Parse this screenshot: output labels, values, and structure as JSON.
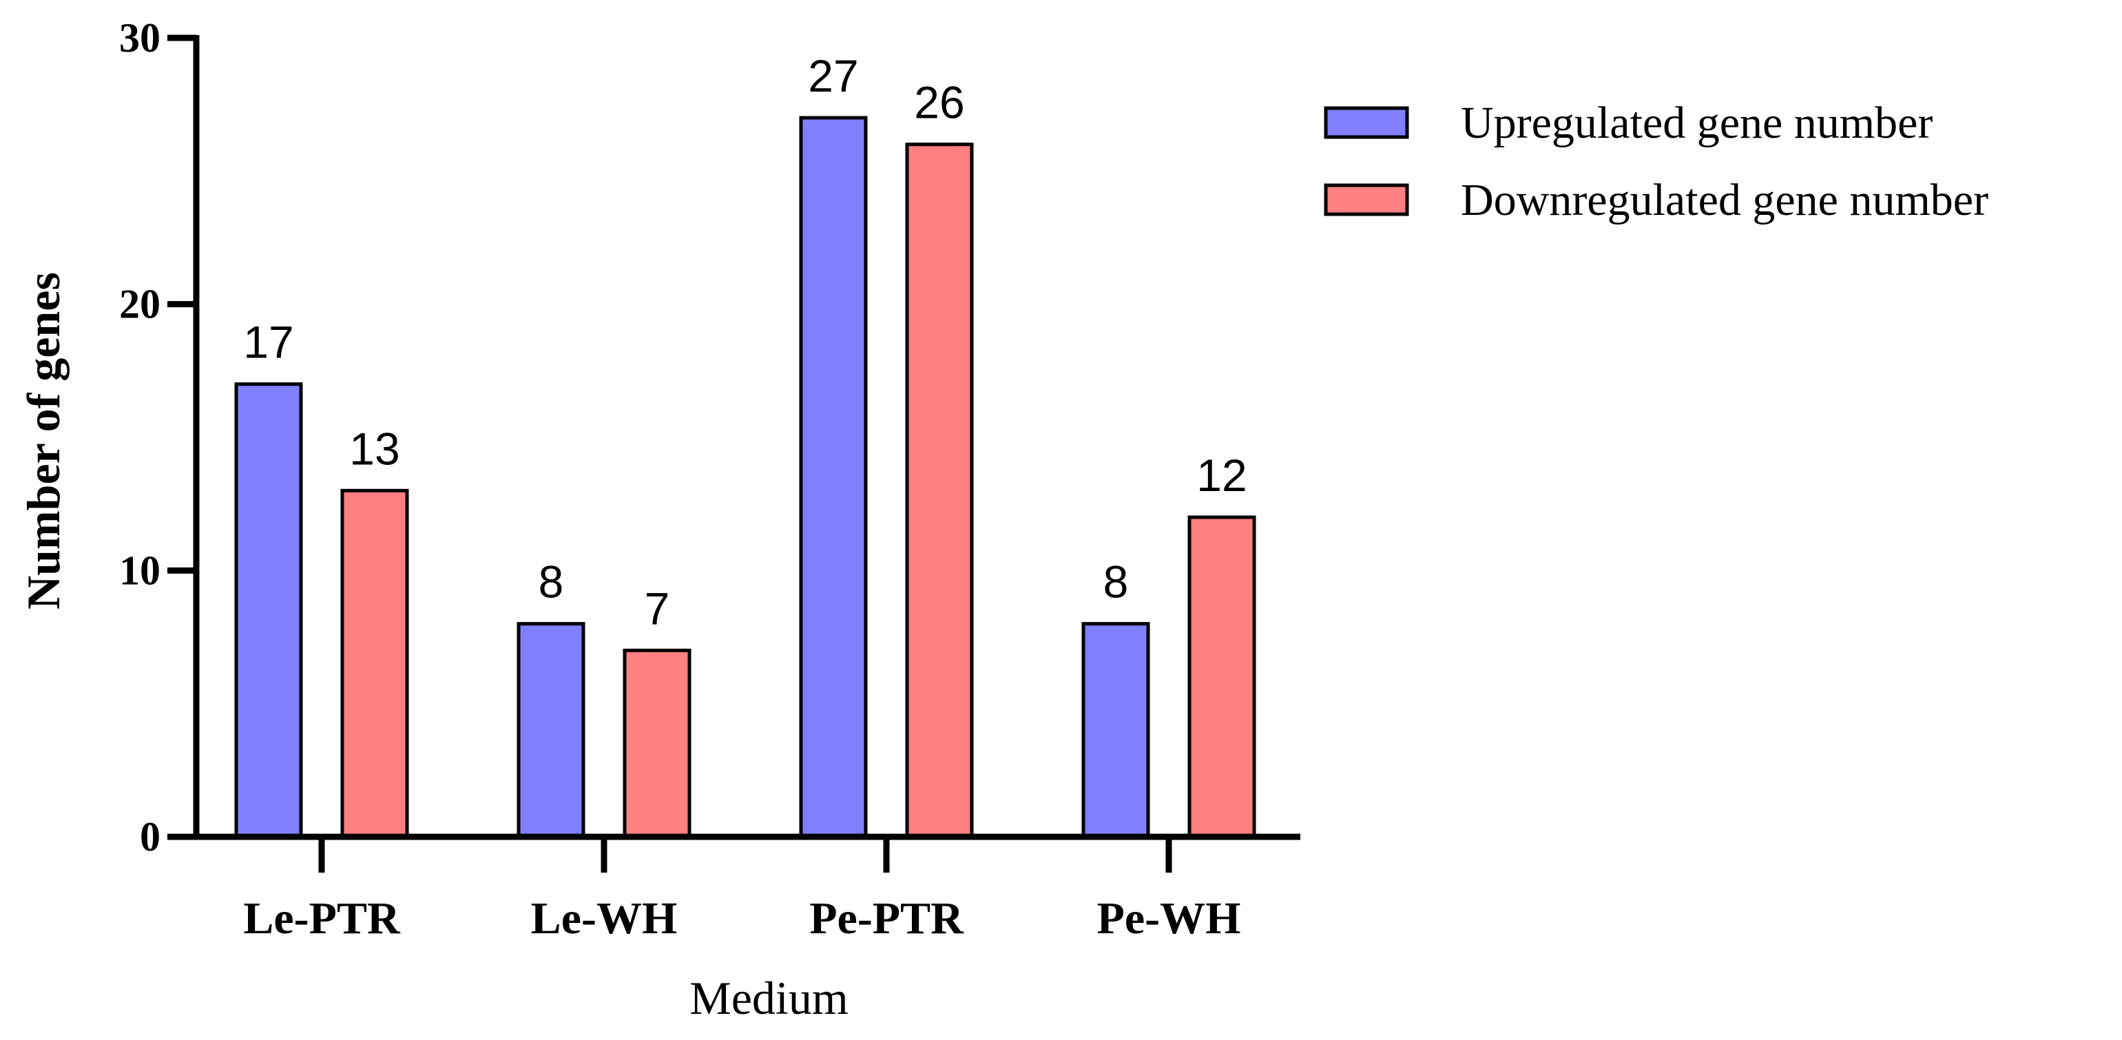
{
  "chart_data": {
    "type": "bar",
    "categories": [
      "Le-PTR",
      "Le-WH",
      "Pe-PTR",
      "Pe-WH"
    ],
    "series": [
      {
        "name": "Upregulated gene number",
        "values": [
          17,
          8,
          27,
          8
        ],
        "color": "#8080ff"
      },
      {
        "name": "Downregulated gene number",
        "values": [
          13,
          7,
          26,
          12
        ],
        "color": "#ff8080"
      }
    ],
    "xlabel": "Medium",
    "ylabel": "Number of genes",
    "ylim": [
      0,
      30
    ],
    "yticks": [
      0,
      10,
      20,
      30
    ],
    "grid": false,
    "legend_position": "top-right",
    "data_labels": true
  }
}
